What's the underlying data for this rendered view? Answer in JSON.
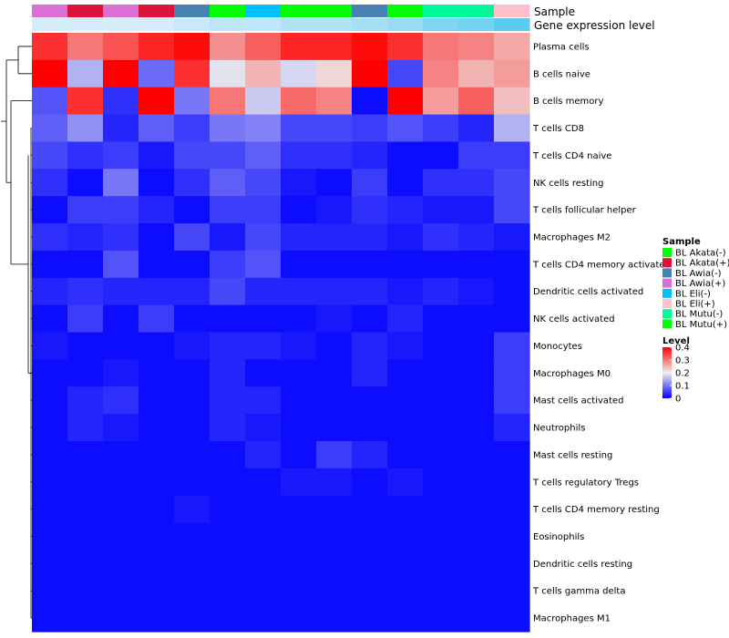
{
  "chart_data": {
    "type": "heatmap",
    "annotation_labels": [
      "Sample",
      "Gene expression level"
    ],
    "sample_annotation": [
      "BL Awia(+)",
      "BL Akata(+)",
      "BL Awia(+)",
      "BL Akata(+)",
      "BL Awia(-)",
      "BL Mutu(+)",
      "BL Eli(-)",
      "BL Mutu(+)",
      "BL Mutu(+)",
      "BL Awia(-)",
      "BL Mutu(+)",
      "BL Mutu(-)",
      "BL Mutu(-)",
      "BL Eli(+)"
    ],
    "expression_level_annotation": [
      0.05,
      0.05,
      0.05,
      0.05,
      0.1,
      0.15,
      0.15,
      0.2,
      0.2,
      0.25,
      0.3,
      0.4,
      0.45,
      0.55
    ],
    "rows": [
      "Plasma cells",
      "B cells naive",
      "B cells memory",
      "T cells CD8",
      "T cells CD4 naive",
      "NK cells resting",
      "T cells follicular helper",
      "Macrophages M2",
      "T cells CD4 memory activated",
      "Dendritic cells activated",
      "NK cells activated",
      "Monocytes",
      "Macrophages M0",
      "Mast cells activated",
      "Neutrophils",
      "Mast cells resting",
      "T cells regulatory  Tregs",
      "T cells CD4 memory resting",
      "Eosinophils",
      "Dendritic cells resting",
      "T cells gamma delta",
      "Macrophages M1"
    ],
    "values": [
      [
        0.36,
        0.3,
        0.33,
        0.37,
        0.39,
        0.28,
        0.32,
        0.37,
        0.37,
        0.39,
        0.36,
        0.3,
        0.29,
        0.26
      ],
      [
        0.4,
        0.15,
        0.4,
        0.09,
        0.36,
        0.19,
        0.25,
        0.18,
        0.22,
        0.4,
        0.06,
        0.29,
        0.25,
        0.27
      ],
      [
        0.07,
        0.36,
        0.04,
        0.4,
        0.1,
        0.3,
        0.17,
        0.31,
        0.29,
        0.01,
        0.4,
        0.27,
        0.32,
        0.24
      ],
      [
        0.08,
        0.12,
        0.03,
        0.08,
        0.05,
        0.1,
        0.11,
        0.06,
        0.06,
        0.05,
        0.07,
        0.05,
        0.03,
        0.15
      ],
      [
        0.06,
        0.04,
        0.05,
        0.02,
        0.06,
        0.06,
        0.08,
        0.04,
        0.04,
        0.03,
        0.01,
        0.01,
        0.05,
        0.05
      ],
      [
        0.04,
        0.01,
        0.1,
        0.01,
        0.04,
        0.08,
        0.06,
        0.02,
        0.01,
        0.05,
        0.01,
        0.04,
        0.04,
        0.06
      ],
      [
        0.01,
        0.05,
        0.05,
        0.03,
        0.01,
        0.05,
        0.05,
        0.01,
        0.02,
        0.04,
        0.03,
        0.02,
        0.02,
        0.06
      ],
      [
        0.04,
        0.03,
        0.04,
        0.01,
        0.06,
        0.02,
        0.06,
        0.03,
        0.03,
        0.03,
        0.02,
        0.04,
        0.03,
        0.02
      ],
      [
        0.01,
        0.01,
        0.07,
        0.01,
        0.01,
        0.05,
        0.07,
        0.01,
        0.01,
        0.01,
        0.01,
        0.01,
        0.01,
        0.01
      ],
      [
        0.03,
        0.04,
        0.03,
        0.03,
        0.03,
        0.06,
        0.03,
        0.03,
        0.03,
        0.03,
        0.02,
        0.03,
        0.02,
        0.01
      ],
      [
        0.01,
        0.05,
        0.01,
        0.05,
        0.01,
        0.01,
        0.01,
        0.01,
        0.02,
        0.01,
        0.03,
        0.01,
        0.01,
        0.01
      ],
      [
        0.02,
        0.01,
        0.01,
        0.01,
        0.02,
        0.03,
        0.03,
        0.02,
        0.01,
        0.03,
        0.02,
        0.01,
        0.01,
        0.05
      ],
      [
        0.01,
        0.01,
        0.02,
        0.01,
        0.01,
        0.03,
        0.01,
        0.01,
        0.01,
        0.03,
        0.01,
        0.01,
        0.01,
        0.05
      ],
      [
        0.01,
        0.03,
        0.04,
        0.01,
        0.01,
        0.03,
        0.03,
        0.01,
        0.01,
        0.01,
        0.01,
        0.01,
        0.01,
        0.05
      ],
      [
        0.01,
        0.03,
        0.02,
        0.01,
        0.01,
        0.03,
        0.02,
        0.01,
        0.01,
        0.01,
        0.01,
        0.01,
        0.01,
        0.03
      ],
      [
        0.01,
        0.01,
        0.01,
        0.01,
        0.01,
        0.01,
        0.03,
        0.01,
        0.05,
        0.03,
        0.01,
        0.01,
        0.01,
        0.01
      ],
      [
        0.01,
        0.01,
        0.01,
        0.01,
        0.01,
        0.01,
        0.01,
        0.02,
        0.02,
        0.01,
        0.02,
        0.01,
        0.01,
        0.01
      ],
      [
        0.01,
        0.01,
        0.01,
        0.01,
        0.02,
        0.01,
        0.01,
        0.01,
        0.01,
        0.01,
        0.01,
        0.01,
        0.01,
        0.01
      ],
      [
        0.01,
        0.01,
        0.01,
        0.01,
        0.01,
        0.01,
        0.01,
        0.01,
        0.01,
        0.01,
        0.01,
        0.01,
        0.01,
        0.01
      ],
      [
        0.01,
        0.01,
        0.01,
        0.01,
        0.01,
        0.01,
        0.01,
        0.01,
        0.01,
        0.01,
        0.01,
        0.01,
        0.01,
        0.01
      ],
      [
        0.01,
        0.01,
        0.01,
        0.01,
        0.01,
        0.01,
        0.01,
        0.01,
        0.01,
        0.01,
        0.01,
        0.01,
        0.01,
        0.01
      ],
      [
        0.01,
        0.01,
        0.01,
        0.01,
        0.01,
        0.01,
        0.01,
        0.01,
        0.01,
        0.01,
        0.01,
        0.01,
        0.01,
        0.01
      ]
    ],
    "color_scale": {
      "min": 0,
      "mid": 0.2,
      "max": 0.4,
      "low": "#0000ff",
      "midcolor": "#eeeeee",
      "high": "#ff0000"
    },
    "legend_sample": {
      "title": "Sample",
      "items": [
        {
          "label": "BL Akata(-)",
          "color": "#00ff00"
        },
        {
          "label": "BL Akata(+)",
          "color": "#dc143c"
        },
        {
          "label": "BL Awia(-)",
          "color": "#4682b4"
        },
        {
          "label": "BL Awia(+)",
          "color": "#da70d6"
        },
        {
          "label": "BL Eli(-)",
          "color": "#00bfff"
        },
        {
          "label": "BL Eli(+)",
          "color": "#ffc0cb"
        },
        {
          "label": "BL Mutu(-)",
          "color": "#00fa9a"
        },
        {
          "label": "BL Mutu(+)",
          "color": "#00ff00"
        }
      ]
    },
    "legend_level": {
      "title": "Level",
      "ticks": [
        "0.4",
        "0.3",
        "0.2",
        "0.1",
        "0"
      ],
      "tick_values": [
        0.4,
        0.3,
        0.2,
        0.1,
        0
      ]
    },
    "row_dendrogram": true,
    "legend_placement": "right"
  }
}
